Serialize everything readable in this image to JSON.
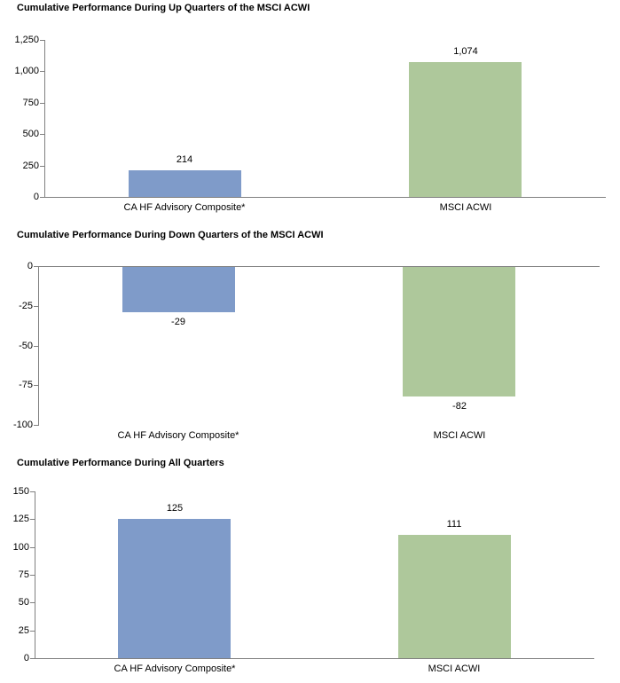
{
  "colors": {
    "bar_blue": "#7f9bc9",
    "bar_green": "#aec89b",
    "axis_gray": "#808080",
    "text": "#000000",
    "background": "#ffffff"
  },
  "chart_data": [
    {
      "type": "bar",
      "title": "Cumulative Performance During Up Quarters of the MSCI ACWI",
      "categories": [
        "CA HF Advisory Composite*",
        "MSCI ACWI"
      ],
      "values": [
        214,
        1074
      ],
      "value_labels": [
        "214",
        "1,074"
      ],
      "series_colors": [
        "#7f9bc9",
        "#aec89b"
      ],
      "ylim": [
        0,
        1250
      ],
      "yticks": [
        0,
        250,
        500,
        750,
        1000,
        1250
      ],
      "ytick_labels": [
        "0",
        "250",
        "500",
        "750",
        "1,000",
        "1,250"
      ],
      "xlabel": "",
      "ylabel": "",
      "grid": false,
      "legend": "none"
    },
    {
      "type": "bar",
      "title": "Cumulative Performance During Down Quarters of the MSCI ACWI",
      "categories": [
        "CA HF Advisory Composite*",
        "MSCI ACWI"
      ],
      "values": [
        -29,
        -82
      ],
      "value_labels": [
        "-29",
        "-82"
      ],
      "series_colors": [
        "#7f9bc9",
        "#aec89b"
      ],
      "ylim": [
        -100,
        0
      ],
      "yticks": [
        0,
        -25,
        -50,
        -75,
        -100
      ],
      "ytick_labels": [
        "0",
        "-25",
        "-50",
        "-75",
        "-100"
      ],
      "xlabel": "",
      "ylabel": "",
      "grid": false,
      "legend": "none"
    },
    {
      "type": "bar",
      "title": "Cumulative Performance During All Quarters",
      "categories": [
        "CA HF Advisory Composite*",
        "MSCI ACWI"
      ],
      "values": [
        125,
        111
      ],
      "value_labels": [
        "125",
        "111"
      ],
      "series_colors": [
        "#7f9bc9",
        "#aec89b"
      ],
      "ylim": [
        0,
        150
      ],
      "yticks": [
        0,
        25,
        50,
        75,
        100,
        125,
        150
      ],
      "ytick_labels": [
        "0",
        "25",
        "50",
        "75",
        "100",
        "125",
        "150"
      ],
      "xlabel": "",
      "ylabel": "",
      "grid": false,
      "legend": "none"
    }
  ]
}
